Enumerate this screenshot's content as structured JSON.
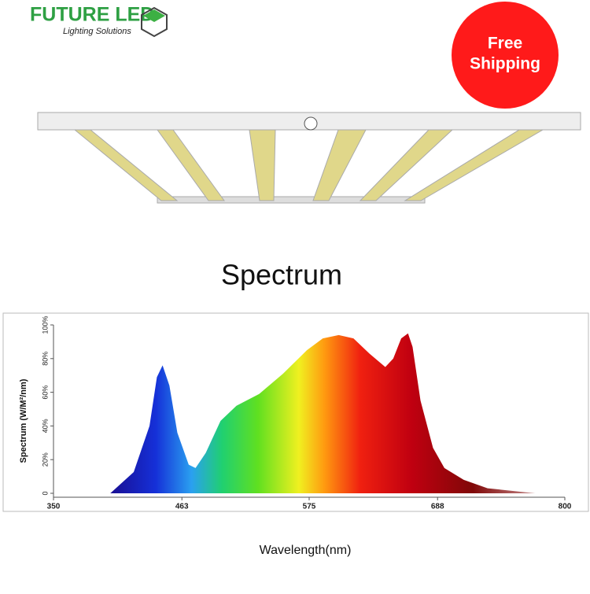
{
  "header": {
    "brand": "FUTURE LED",
    "tagline": "Lighting Solutions",
    "badge_line1": "Free",
    "badge_line2": "Shipping"
  },
  "chart_data": {
    "type": "area",
    "title": "Spectrum",
    "x_label": "Wavelength(nm)",
    "y_label": "Spectrum  (W/M²/nm)",
    "x": [
      400,
      420.6,
      434.5,
      441,
      446,
      452,
      459,
      469,
      475,
      484,
      497,
      511,
      531,
      552,
      573,
      587,
      601,
      614,
      628,
      642,
      649,
      656,
      662,
      666,
      673,
      684,
      694,
      711,
      732,
      760,
      774
    ],
    "values": [
      0,
      12.6,
      40,
      69,
      76,
      64,
      36,
      17,
      15,
      24,
      43,
      52,
      59,
      71,
      85,
      92,
      94,
      92,
      83,
      75,
      80,
      92,
      95,
      87,
      55,
      27,
      15,
      8,
      3,
      1,
      0
    ],
    "xlim": [
      350,
      800
    ],
    "xticks": [
      350,
      463,
      575,
      688,
      800
    ],
    "ylim": [
      0,
      100
    ],
    "yticks": [
      0,
      {
        "value": 20,
        "label": "20%"
      },
      {
        "value": 40,
        "label": "40%"
      },
      {
        "value": 60,
        "label": "60%"
      },
      {
        "value": 80,
        "label": "80%"
      },
      {
        "value": 100,
        "label": "100%"
      }
    ]
  }
}
